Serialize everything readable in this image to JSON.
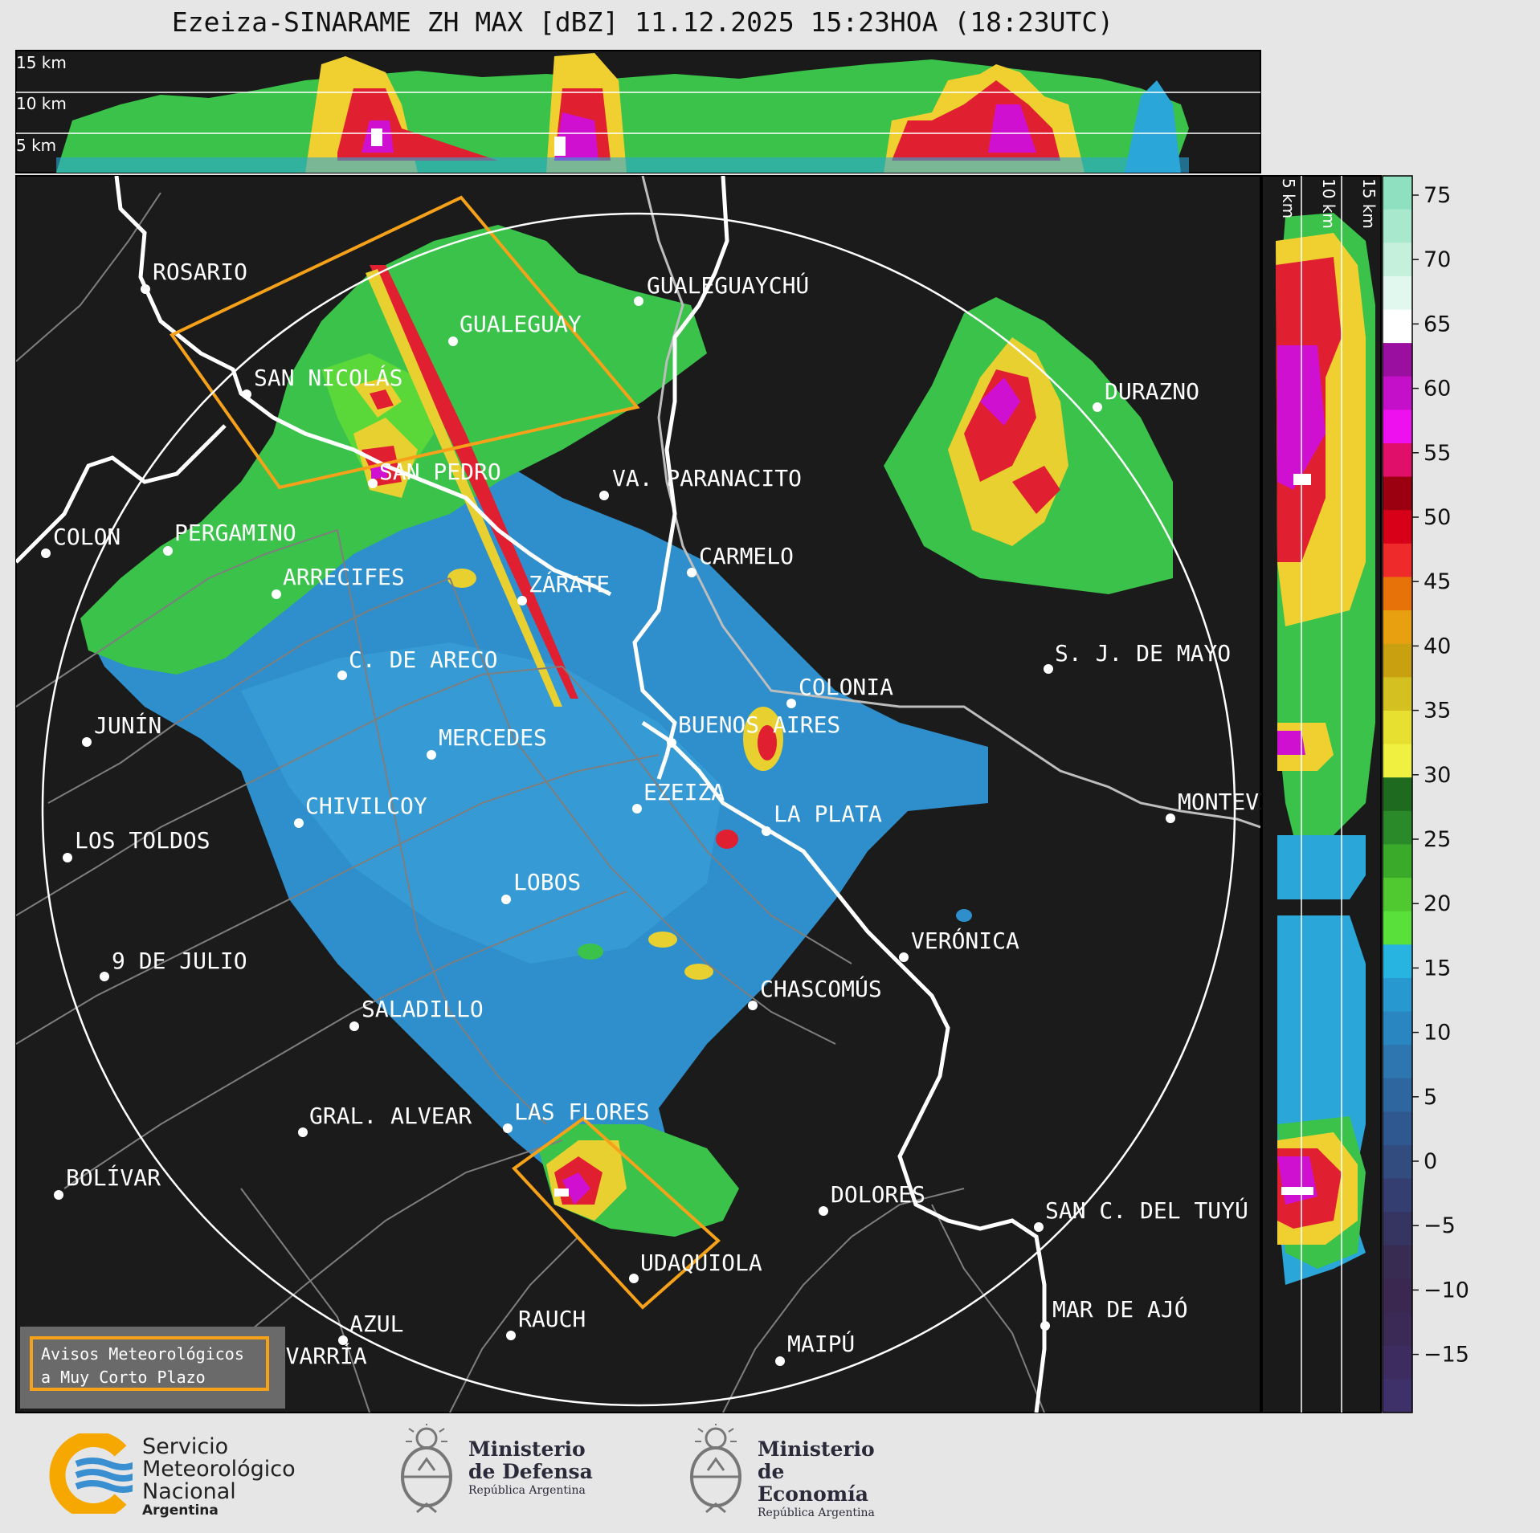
{
  "title": "Ezeiza-SINARAME ZH MAX [dBZ] 11.12.2025 15:23HOA (18:23UTC)",
  "top_panel": {
    "height_labels": [
      "15 km",
      "10 km",
      "5 km"
    ]
  },
  "side_panel": {
    "height_labels": [
      "5 km",
      "10 km",
      "15 km"
    ]
  },
  "colorbar": {
    "ticks": [
      "75",
      "70",
      "65",
      "60",
      "55",
      "50",
      "45",
      "40",
      "35",
      "30",
      "25",
      "20",
      "15",
      "10",
      "5",
      "0",
      "−5",
      "−10",
      "−15"
    ],
    "colors": [
      "#8ee0c0",
      "#a8e8cc",
      "#c4f0dc",
      "#e0f8ee",
      "#ffffff",
      "#9a0fa0",
      "#c410c8",
      "#ee10ee",
      "#e0106a",
      "#9a0010",
      "#d80018",
      "#ee2a2a",
      "#e8720a",
      "#e8a010",
      "#c8a010",
      "#d4c020",
      "#e8e030",
      "#f0f040",
      "#1e6a1e",
      "#2a8a2a",
      "#3aaa2a",
      "#50c830",
      "#5ae03a",
      "#28b4e0",
      "#2898d0",
      "#2a86c0",
      "#2e76b0",
      "#2e66a0",
      "#305890",
      "#324c80",
      "#343e70",
      "#363460",
      "#382c52",
      "#3a2850",
      "#3a2a55",
      "#3c2c60",
      "#3e3068"
    ]
  },
  "cities": [
    {
      "name": "ROSARIO"
    },
    {
      "name": "GUALEGUAYCHÚ"
    },
    {
      "name": "GUALEGUAY"
    },
    {
      "name": "SAN NICOLÁS"
    },
    {
      "name": "DURAZNO"
    },
    {
      "name": "SAN PEDRO"
    },
    {
      "name": "VA. PARANACITO"
    },
    {
      "name": "COLON"
    },
    {
      "name": "PERGAMINO"
    },
    {
      "name": "CARMELO"
    },
    {
      "name": "ARRECIFES"
    },
    {
      "name": "ZÁRATE"
    },
    {
      "name": "S. J. DE MAYO"
    },
    {
      "name": "C. DE ARECO"
    },
    {
      "name": "COLONIA"
    },
    {
      "name": "JUNÍN"
    },
    {
      "name": "BUENOS AIRES"
    },
    {
      "name": "MERCEDES"
    },
    {
      "name": "EZEIZA"
    },
    {
      "name": "MONTEVIDEO"
    },
    {
      "name": "CHIVILCOY"
    },
    {
      "name": "LA PLATA"
    },
    {
      "name": "LOS TOLDOS"
    },
    {
      "name": "LOBOS"
    },
    {
      "name": "VERÓNICA"
    },
    {
      "name": "9 DE JULIO"
    },
    {
      "name": "CHASCOMÚS"
    },
    {
      "name": "SALADILLO"
    },
    {
      "name": "GRAL. ALVEAR"
    },
    {
      "name": "LAS FLORES"
    },
    {
      "name": "BOLÍVAR"
    },
    {
      "name": "DOLORES"
    },
    {
      "name": "SAN C. DEL TUYÚ"
    },
    {
      "name": "UDAQUIOLA"
    },
    {
      "name": "AZUL"
    },
    {
      "name": "RAUCH"
    },
    {
      "name": "MAR DE AJÓ"
    },
    {
      "name": "OLAVARRÍA"
    },
    {
      "name": "MAIPÚ"
    }
  ],
  "legend": {
    "line1": "Avisos Meteorológicos",
    "line2": "a Muy Corto Plazo"
  },
  "logos": {
    "smn": {
      "line1": "Servicio",
      "line2": "Meteorológico",
      "line3": "Nacional",
      "line4": "Argentina"
    },
    "defensa": {
      "line1": "Ministerio",
      "line2": "de Defensa",
      "line3": "República Argentina"
    },
    "economia": {
      "line1": "Ministerio",
      "line2": "de Economía",
      "line3": "República Argentina"
    }
  }
}
